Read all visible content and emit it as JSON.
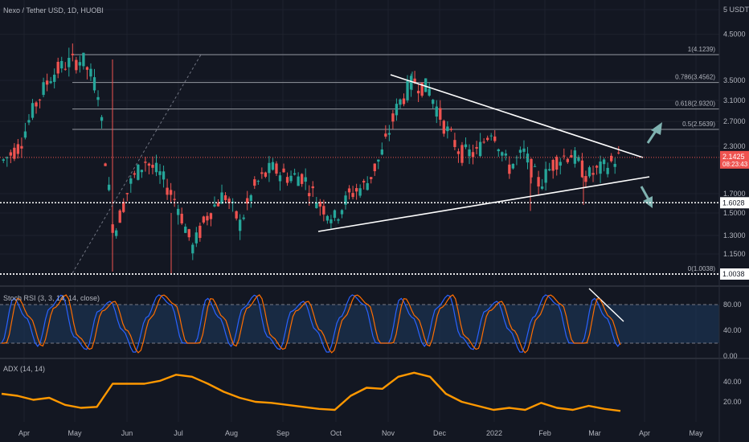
{
  "header": {
    "symbol_title": "Nexo / Tether USD, 1D, HUOBI"
  },
  "colors": {
    "background": "#131722",
    "up": "#26a69a",
    "down": "#ef5350",
    "fib_line": "#9598a1",
    "trend_line": "#ffffff",
    "arrow": "#7fb2b0",
    "rsi_k": "#2962ff",
    "rsi_d": "#ff6d00",
    "adx": "#ff9800",
    "band": "#1e3a5f",
    "price_tag": "#ef5350"
  },
  "chart_data": {
    "type": "candlestick",
    "x_labels": [
      "Apr",
      "May",
      "Jun",
      "Jul",
      "Aug",
      "Sep",
      "Oct",
      "Nov",
      "Dec",
      "2022",
      "Feb",
      "Mar",
      "Apr",
      "May"
    ],
    "y_scale": "log",
    "y_ticks": [
      "5 USDT",
      "4.5000",
      "3.5000",
      "3.1000",
      "2.7000",
      "2.3000",
      "1.7000",
      "1.5000",
      "1.3000",
      "1.1500"
    ],
    "y_tick_values": [
      5.0,
      4.5,
      3.5,
      3.1,
      2.7,
      2.3,
      1.7,
      1.5,
      1.3,
      1.15
    ],
    "current_price": {
      "value": "2.1425",
      "countdown": "08:23:43"
    },
    "price_markers": [
      {
        "label": "1.6028",
        "value": 1.6028
      },
      {
        "label": "1.0038",
        "value": 1.0038
      }
    ],
    "fib_levels": [
      {
        "label": "1(4.1239)",
        "value": 4.1239
      },
      {
        "label": "0.786(3.4562)",
        "value": 3.4562
      },
      {
        "label": "0.618(2.9320)",
        "value": 2.932
      },
      {
        "label": "0.5(2.5639)",
        "value": 2.5639
      },
      {
        "label": "0(1.0038)",
        "value": 1.0038
      }
    ],
    "close_path": [
      [
        "Apr",
        2.1
      ],
      [
        "Apr",
        2.3
      ],
      [
        "Apr",
        3.0
      ],
      [
        "Apr",
        3.6
      ],
      [
        "May",
        3.9
      ],
      [
        "May",
        4.0
      ],
      [
        "May",
        3.3
      ],
      [
        "Jun",
        1.3
      ],
      [
        "Jun",
        1.8
      ],
      [
        "Jun",
        2.1
      ],
      [
        "Jun",
        1.9
      ],
      [
        "Jul",
        1.6
      ],
      [
        "Jul",
        1.2
      ],
      [
        "Jul",
        1.5
      ],
      [
        "Jul",
        1.7
      ],
      [
        "Aug",
        1.4
      ],
      [
        "Aug",
        1.8
      ],
      [
        "Aug",
        2.0
      ],
      [
        "Aug",
        1.9
      ],
      [
        "Sep",
        1.9
      ],
      [
        "Sep",
        1.6
      ],
      [
        "Sep",
        1.45
      ],
      [
        "Oct",
        1.7
      ],
      [
        "Oct",
        1.8
      ],
      [
        "Oct",
        2.2
      ],
      [
        "Nov",
        3.0
      ],
      [
        "Nov",
        3.5
      ],
      [
        "Nov",
        3.3
      ],
      [
        "Dec",
        2.6
      ],
      [
        "Dec",
        2.2
      ],
      [
        "Dec",
        2.2
      ],
      [
        "2022",
        2.6
      ],
      [
        "2022",
        2.0
      ],
      [
        "2022",
        2.2
      ],
      [
        "Feb",
        1.8
      ],
      [
        "Feb",
        2.1
      ],
      [
        "Feb",
        2.2
      ],
      [
        "Mar",
        1.9
      ],
      [
        "Mar",
        2.0
      ],
      [
        "Mar",
        2.14
      ]
    ],
    "indicators": [
      {
        "name": "Stoch RSI (3, 3, 14, 14, close)",
        "ticks": [
          "80.00",
          "40.00",
          "0.00"
        ],
        "tick_values": [
          80,
          40,
          0
        ],
        "bands": [
          80,
          20
        ],
        "k_cycle": [
          20,
          90,
          60,
          15,
          75,
          95,
          30,
          10,
          70,
          85,
          40,
          5,
          60,
          95,
          80,
          20
        ]
      },
      {
        "name": "ADX (14, 14)",
        "ticks": [
          "40.00",
          "20.00"
        ],
        "tick_values": [
          40,
          20
        ],
        "values": [
          [
            "Apr",
            28
          ],
          [
            "Apr",
            26
          ],
          [
            "Apr",
            22
          ],
          [
            "Apr",
            24
          ],
          [
            "May",
            17
          ],
          [
            "May",
            14
          ],
          [
            "May",
            15
          ],
          [
            "Jun",
            38
          ],
          [
            "Jun",
            38
          ],
          [
            "Jun",
            38
          ],
          [
            "Jun",
            41
          ],
          [
            "Jul",
            47
          ],
          [
            "Jul",
            45
          ],
          [
            "Jul",
            38
          ],
          [
            "Jul",
            30
          ],
          [
            "Aug",
            24
          ],
          [
            "Aug",
            20
          ],
          [
            "Aug",
            19
          ],
          [
            "Aug",
            17
          ],
          [
            "Sep",
            15
          ],
          [
            "Sep",
            13
          ],
          [
            "Sep",
            12
          ],
          [
            "Oct",
            26
          ],
          [
            "Oct",
            34
          ],
          [
            "Oct",
            33
          ],
          [
            "Nov",
            45
          ],
          [
            "Nov",
            49
          ],
          [
            "Nov",
            45
          ],
          [
            "Dec",
            28
          ],
          [
            "Dec",
            20
          ],
          [
            "Dec",
            16
          ],
          [
            "2022",
            12
          ],
          [
            "2022",
            14
          ],
          [
            "2022",
            12
          ],
          [
            "Feb",
            19
          ],
          [
            "Feb",
            14
          ],
          [
            "Feb",
            12
          ],
          [
            "Mar",
            16
          ],
          [
            "Mar",
            13
          ],
          [
            "Mar",
            11
          ]
        ]
      }
    ],
    "grid": true
  }
}
